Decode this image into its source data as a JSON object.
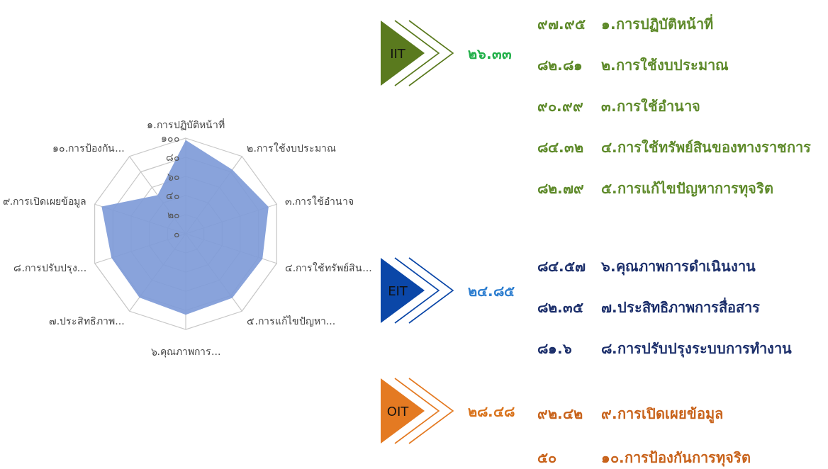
{
  "chart_data": [
    {
      "type": "radar",
      "categories": [
        "๑.การปฏิบัติหน้าที่",
        "๒.การใช้งบประมาณ",
        "๓.การใช้อำนาจ",
        "๔.การใช้ทรัพย์สิน...",
        "๕.การแก้ไขปัญหา...",
        "๖.คุณภาพการ...",
        "๗.ประสิทธิภาพ...",
        "๘.การปรับปรุง...",
        "๙.การเปิดเผยข้อมูล",
        "๑๐.การป้องกัน..."
      ],
      "series": [
        {
          "color": "#7f9bd8",
          "values": [
            97.95,
            82.81,
            90.99,
            84.32,
            82.79,
            84.57,
            82.35,
            81.6,
            92.42,
            50
          ]
        }
      ],
      "ylim": [
        0,
        100
      ],
      "yticks": [
        {
          "value": 0,
          "label": "๐"
        },
        {
          "value": 20,
          "label": "๒๐"
        },
        {
          "value": 40,
          "label": "๔๐"
        },
        {
          "value": 60,
          "label": "๖๐"
        },
        {
          "value": 80,
          "label": "๘๐"
        },
        {
          "value": 100,
          "label": "๑๐๐"
        }
      ],
      "grid": true
    },
    {
      "type": "other",
      "title": "IIT",
      "subtitle": "๒๖.๓๓",
      "colors": [
        "#5a7a1e",
        "#22b04a",
        "#5e8a2a"
      ],
      "categories": [
        "๑.การปฏิบัติหน้าที่",
        "๒.การใช้งบประมาณ",
        "๓.การใช้อำนาจ",
        "๔.การใช้ทรัพย์สินของทางราชการ",
        "๕.การแก้ไขปัญหาการทุจริต"
      ],
      "value_labels": [
        "๙๗.๙๕",
        "๘๒.๘๑",
        "๙๐.๙๙",
        "๘๔.๓๒",
        "๘๒.๗๙"
      ]
    },
    {
      "type": "other",
      "title": "EIT",
      "subtitle": "๒๔.๘๕",
      "colors": [
        "#0b47a8",
        "#2f7fd0",
        "#1c2f6b"
      ],
      "categories": [
        "๖.คุณภาพการดำเนินงาน",
        "๗.ประสิทธิภาพการสื่อสาร",
        "๘.การปรับปรุงระบบการทำงาน"
      ],
      "value_labels": [
        "๘๔.๕๗",
        "๘๒.๓๕",
        "๘๑.๖"
      ]
    },
    {
      "type": "other",
      "title": "OIT",
      "subtitle": "๒๘.๔๘",
      "colors": [
        "#e47a22",
        "#d9731c",
        "#c8621a"
      ],
      "categories": [
        "๙.การเปิดเผยข้อมูล",
        "๑๐.การป้องกันการทุจริต"
      ],
      "value_labels": [
        "๙๒.๔๒",
        "๕๐"
      ]
    }
  ]
}
